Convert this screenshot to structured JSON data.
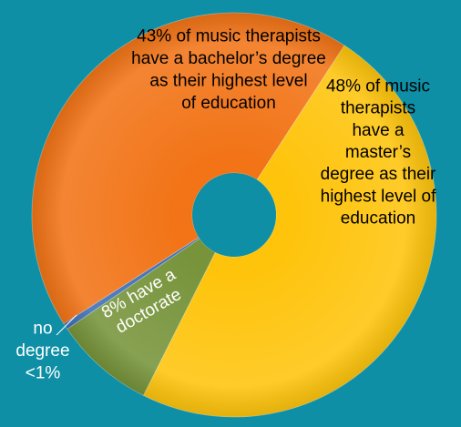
{
  "chart_data": {
    "type": "pie",
    "style": "donut",
    "slices": [
      {
        "label": "master's degree",
        "value": 48,
        "color": "#fec40c",
        "text_lines": [
          "48% of music",
          "therapists",
          "have a",
          "master’s",
          "degree as their",
          "highest level of",
          "education"
        ]
      },
      {
        "label": "doctorate",
        "value": 8,
        "color": "#77943b",
        "text_lines": [
          "8% have a",
          "doctorate"
        ]
      },
      {
        "label": "no degree",
        "value": 0.5,
        "color": "#3d6fb6",
        "text_lines": [
          "no",
          "degree",
          "<1%"
        ]
      },
      {
        "label": "bachelor's degree",
        "value": 43,
        "color": "#f27417",
        "text_lines": [
          "43% of music therapists",
          "have a bachelor’s degree",
          "as their highest level",
          "of education"
        ]
      }
    ],
    "label_color": "#000000",
    "inner_label_color": "#ffffff",
    "background": "#0e8fa6"
  }
}
